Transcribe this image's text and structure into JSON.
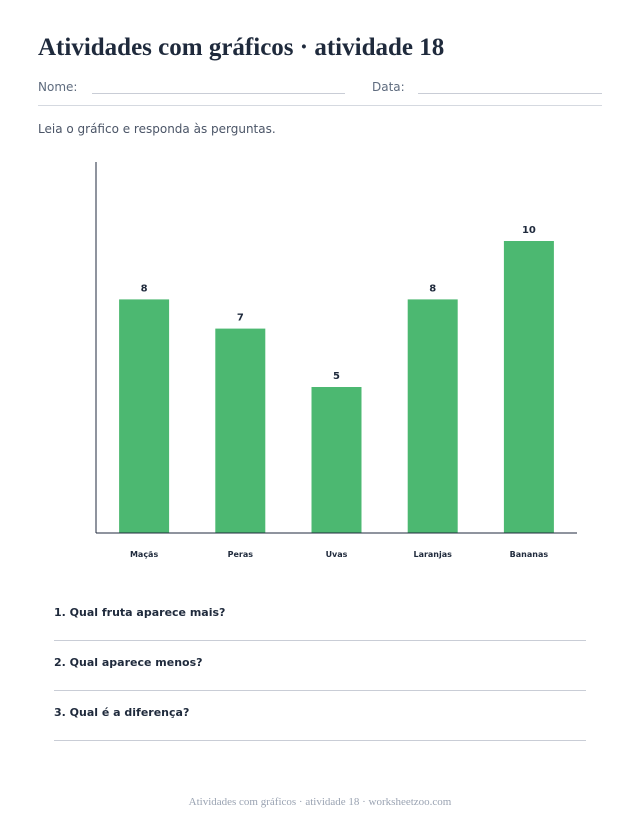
{
  "title": "Atividades com gráficos · atividade 18",
  "fields": {
    "name_label": "Nome:",
    "date_label": "Data:"
  },
  "instructions": "Leia o gráfico e responda às perguntas.",
  "colors": {
    "bar": "#4cb871",
    "axis": "#1f2a3c",
    "text": "#1f2a3c"
  },
  "chart_data": {
    "type": "bar",
    "title": "",
    "xlabel": "",
    "ylabel": "",
    "categories": [
      "Maçãs",
      "Peras",
      "Uvas",
      "Laranjas",
      "Bananas"
    ],
    "values": [
      8,
      7,
      5,
      8,
      10
    ],
    "data_labels": [
      "8",
      "7",
      "5",
      "8",
      "10"
    ],
    "ylim": [
      0,
      10
    ],
    "grid": false,
    "legend": "none"
  },
  "questions": [
    "1. Qual fruta aparece mais?",
    "2. Qual aparece menos?",
    "3. Qual é a diferença?"
  ],
  "footer": "Atividades com gráficos · atividade 18 · worksheetzoo.com"
}
